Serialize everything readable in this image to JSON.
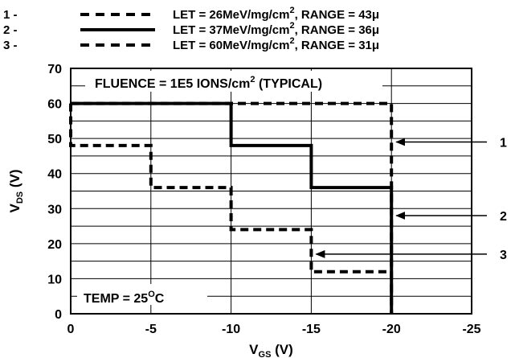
{
  "chart_data": {
    "type": "line",
    "xlabel": {
      "main": "V",
      "sub": "GS",
      "unit": " (V)"
    },
    "ylabel": {
      "main": "V",
      "sub": "DS",
      "unit": " (V)"
    },
    "xlim": [
      0,
      -25
    ],
    "ylim": [
      0,
      70
    ],
    "x_ticks": [
      0,
      -5,
      -10,
      -15,
      -20,
      -25
    ],
    "y_ticks": [
      0,
      10,
      20,
      30,
      40,
      50,
      60,
      70
    ],
    "x_tick_labels": [
      "0",
      "-5",
      "-10",
      "-15",
      "-20",
      "-25"
    ],
    "y_tick_labels": [
      "0",
      "10",
      "20",
      "30",
      "40",
      "50",
      "60",
      "70"
    ],
    "grid": {
      "horizontal_step": 5
    },
    "legend": [
      {
        "number": "1 -",
        "style": "dashed",
        "text": "LET = 26MeV/mg/cm",
        "sup": "2",
        "rest": ", RANGE = 43μ"
      },
      {
        "number": "2 -",
        "style": "solid",
        "text": "LET = 37MeV/mg/cm",
        "sup": "2",
        "rest": ", RANGE = 36μ"
      },
      {
        "number": "3 -",
        "style": "dashed",
        "text": "LET = 60MeV/mg/cm",
        "sup": "2",
        "rest": ", RANGE = 31μ"
      }
    ],
    "fluence_note": {
      "text": "FLUENCE = 1E5 IONS/cm",
      "sup": "2",
      "rest": " (TYPICAL)"
    },
    "temp_note": {
      "text": "TEMP = 25",
      "sup": "O",
      "rest": "C"
    },
    "series": [
      {
        "id": "1",
        "style": "dashed",
        "points": [
          [
            0,
            60
          ],
          [
            -20,
            60
          ],
          [
            -20,
            0
          ]
        ]
      },
      {
        "id": "2",
        "style": "solid",
        "points": [
          [
            0,
            60
          ],
          [
            -10,
            60
          ],
          [
            -10,
            48
          ],
          [
            -15,
            48
          ],
          [
            -15,
            36
          ],
          [
            -20,
            36
          ],
          [
            -20,
            0
          ]
        ]
      },
      {
        "id": "3",
        "style": "dashed",
        "points": [
          [
            0,
            60
          ],
          [
            0,
            48
          ],
          [
            -5,
            48
          ],
          [
            -5,
            36
          ],
          [
            -10,
            36
          ],
          [
            -10,
            24
          ],
          [
            -15,
            24
          ],
          [
            -15,
            12
          ],
          [
            -20,
            12
          ]
        ]
      }
    ],
    "callouts": [
      {
        "label": "1",
        "x": -20,
        "y": 49
      },
      {
        "label": "2",
        "x": -20,
        "y": 28
      },
      {
        "label": "3",
        "x": -15,
        "y": 17
      }
    ]
  }
}
